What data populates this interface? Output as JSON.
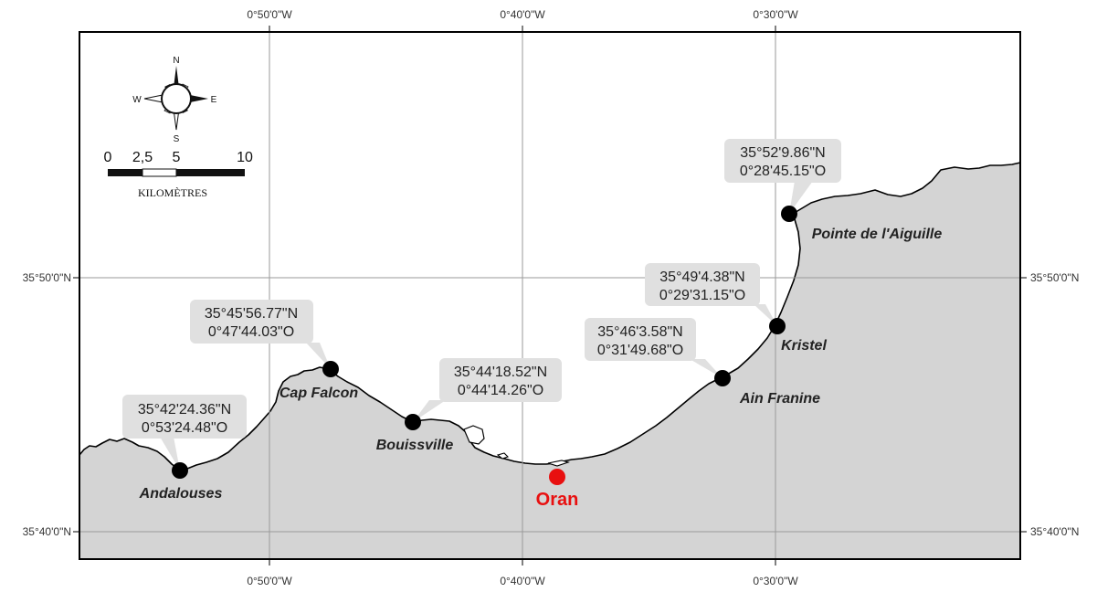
{
  "map": {
    "lon_ticks_top": [
      "0°50'0\"W",
      "0°40'0\"W",
      "0°30'0\"W"
    ],
    "lon_ticks_bottom": [
      "0°50'0\"W",
      "0°40'0\"W",
      "0°30'0\"W"
    ],
    "lat_ticks_left": [
      "35°50'0\"N",
      "35°40'0\"N"
    ],
    "lat_ticks_right": [
      "35°50'0\"N",
      "35°40'0\"N"
    ],
    "colors": {
      "land": "#d4d4d4",
      "sea": "#ffffff",
      "site": "#000000",
      "city": "#e81010",
      "callout": "#e0e0e0"
    }
  },
  "compass": {
    "n": "N",
    "s": "S",
    "e": "E",
    "w": "W"
  },
  "scale_bar": {
    "ticks": [
      "0",
      "2,5",
      "5",
      "10"
    ],
    "unit": "KILOMÈTRES"
  },
  "sites": [
    {
      "name": "Andalouses",
      "lat": "35°42'24.36\"N",
      "lon": "0°53'24.48\"O"
    },
    {
      "name": "Cap Falcon",
      "lat": "35°45'56.77\"N",
      "lon": "0°47'44.03\"O"
    },
    {
      "name": "Bouissville",
      "lat": "35°44'18.52\"N",
      "lon": "0°44'14.26\"O"
    },
    {
      "name": "Ain Franine",
      "lat": "35°46'3.58\"N",
      "lon": "0°31'49.68\"O"
    },
    {
      "name": "Kristel",
      "lat": "35°49'4.38\"N",
      "lon": "0°29'31.15\"O"
    },
    {
      "name": "Pointe de l'Aiguille",
      "lat": "35°52'9.86\"N",
      "lon": "0°28'45.15\"O"
    }
  ],
  "city": {
    "name": "Oran"
  }
}
